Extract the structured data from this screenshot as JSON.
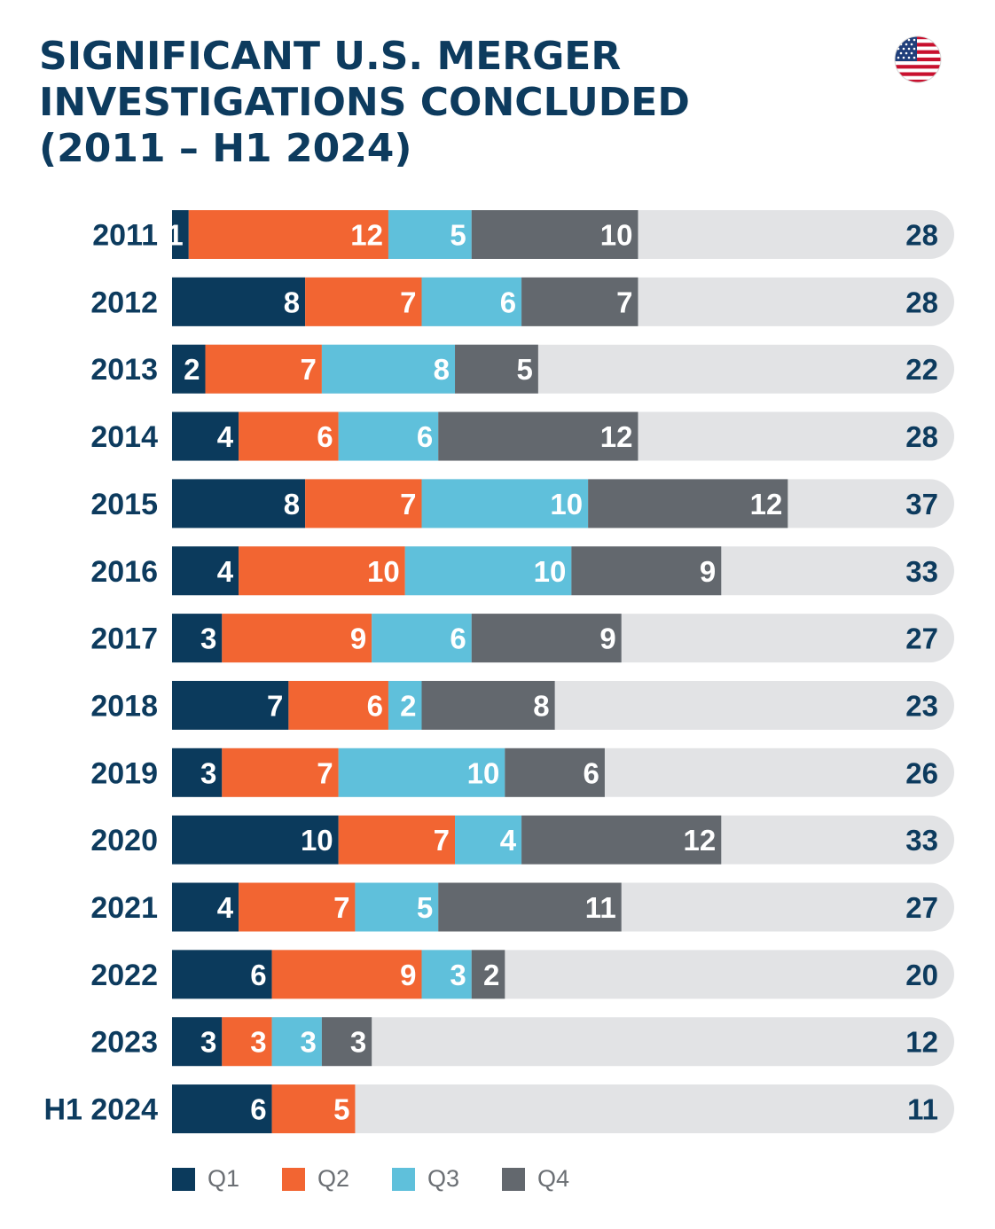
{
  "title": {
    "line1": "SIGNIFICANT U.S. MERGER",
    "line2": "INVESTIGATIONS CONCLUDED",
    "line3": "(2011 – H1 2024)"
  },
  "flag_icon": "us-flag-icon",
  "colors": {
    "Q1": "#0b3a5c",
    "Q2": "#f26532",
    "Q3": "#5fc0db",
    "Q4": "#63686e",
    "track": "#e2e3e5",
    "text": "#0d3b5e"
  },
  "chart_data": {
    "type": "bar",
    "orientation": "horizontal",
    "stacked": true,
    "categories": [
      "2011",
      "2012",
      "2013",
      "2014",
      "2015",
      "2016",
      "2017",
      "2018",
      "2019",
      "2020",
      "2021",
      "2022",
      "2023",
      "H1 2024"
    ],
    "series": [
      {
        "name": "Q1",
        "values": [
          1,
          8,
          2,
          4,
          8,
          4,
          3,
          7,
          3,
          10,
          4,
          6,
          3,
          6
        ]
      },
      {
        "name": "Q2",
        "values": [
          12,
          7,
          7,
          6,
          7,
          10,
          9,
          6,
          7,
          7,
          7,
          9,
          3,
          5
        ]
      },
      {
        "name": "Q3",
        "values": [
          5,
          6,
          8,
          6,
          10,
          10,
          6,
          2,
          10,
          4,
          5,
          3,
          3,
          0
        ]
      },
      {
        "name": "Q4",
        "values": [
          10,
          7,
          5,
          12,
          12,
          9,
          9,
          8,
          6,
          12,
          11,
          2,
          3,
          0
        ]
      }
    ],
    "totals": [
      "28",
      "28",
      "22",
      "28",
      "37",
      "33",
      "27",
      "23",
      "26",
      "33",
      "27",
      "20",
      "12",
      "11"
    ],
    "xlim": [
      0,
      47
    ],
    "grid": false,
    "legend": "bottom-left"
  },
  "legend": [
    "Q1",
    "Q2",
    "Q3",
    "Q4"
  ]
}
